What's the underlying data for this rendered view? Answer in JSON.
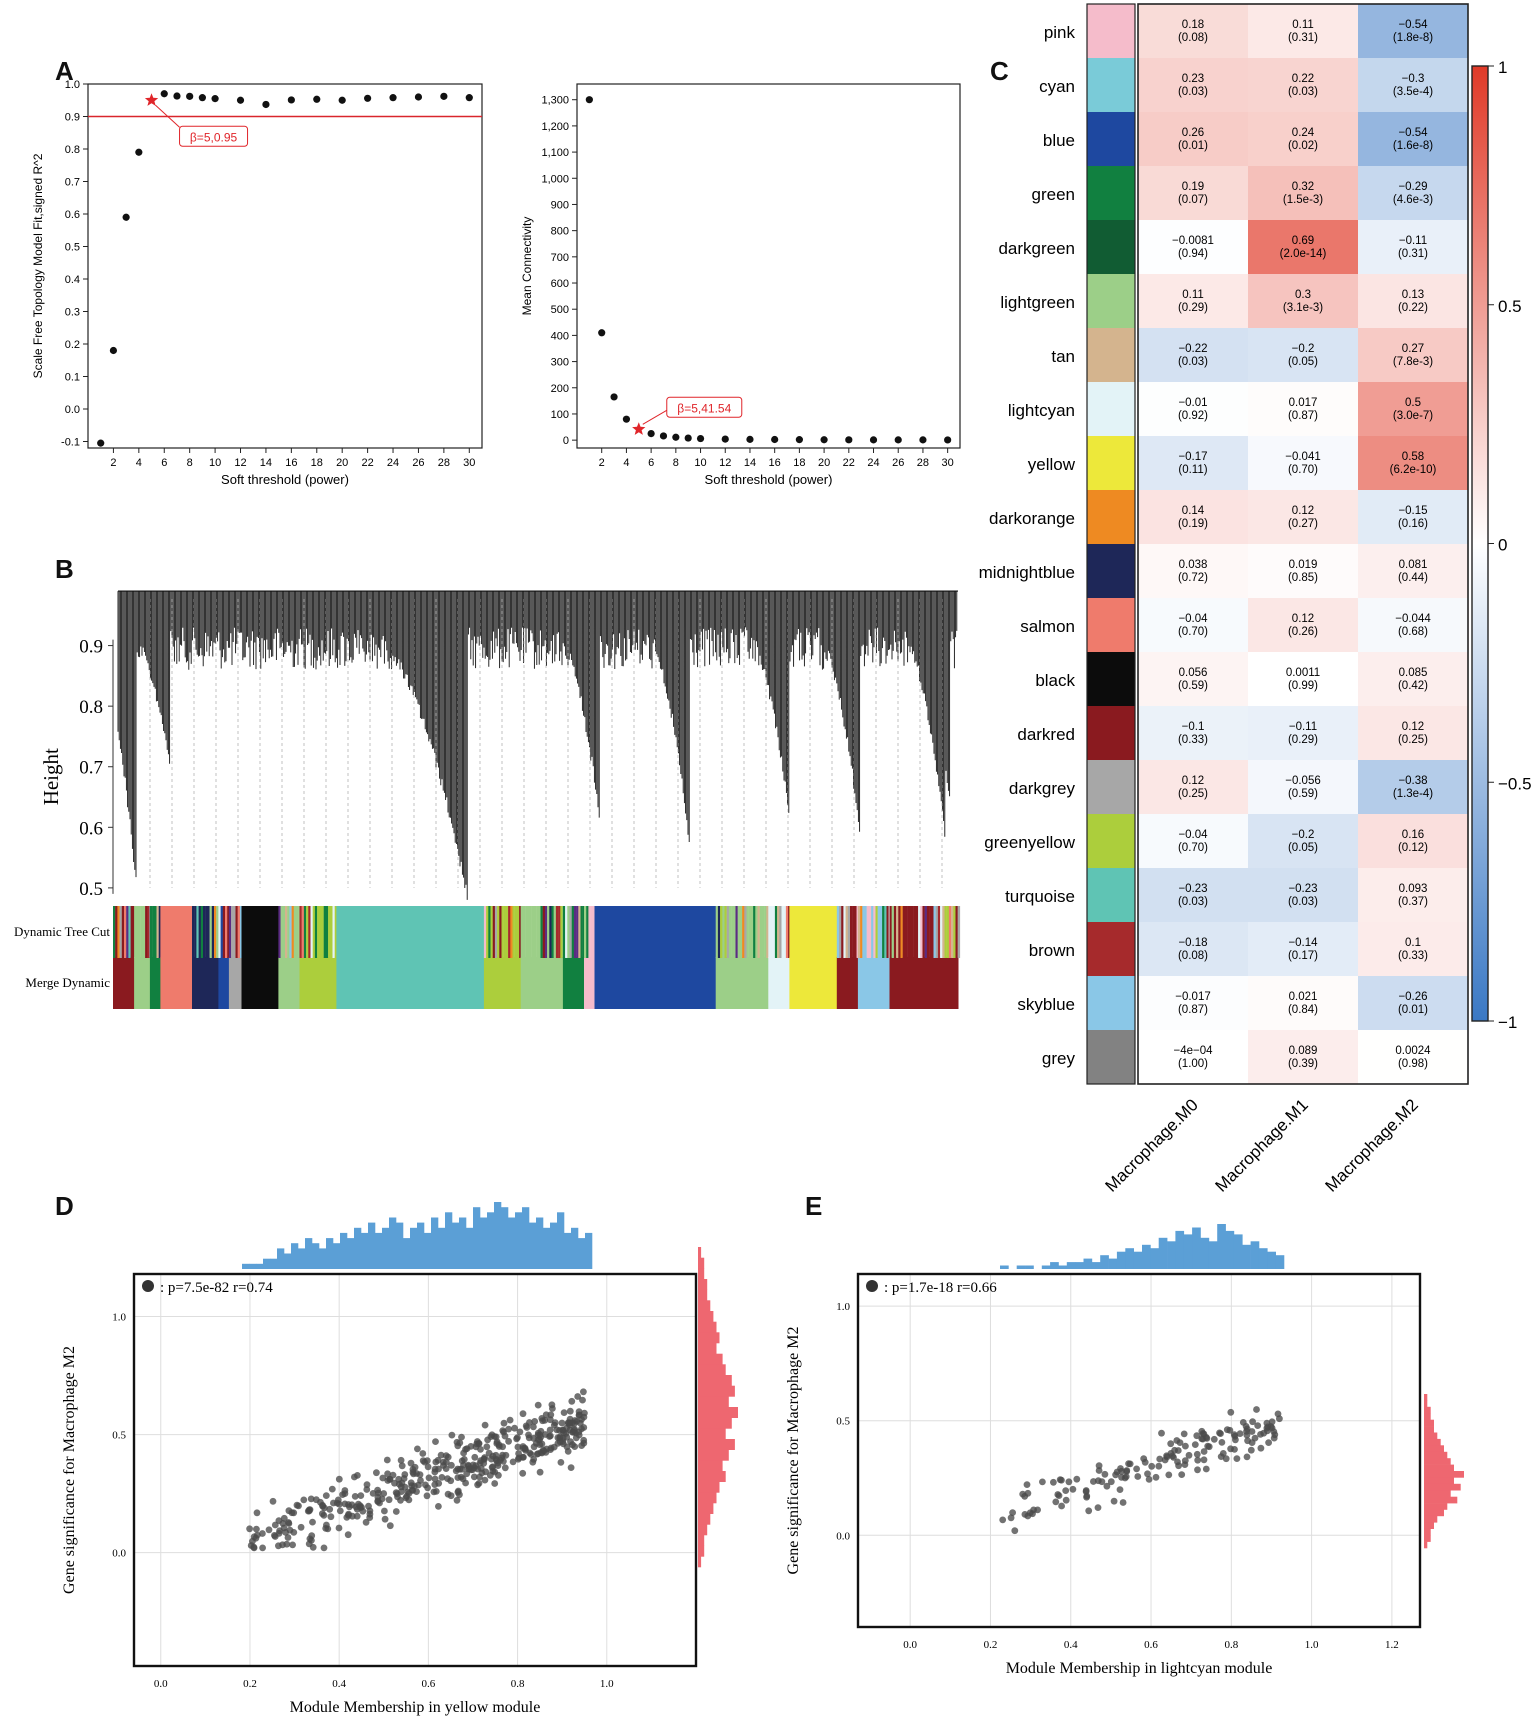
{
  "panel_labels": {
    "a": "A",
    "b": "B",
    "c": "C",
    "d": "D",
    "e": "E"
  },
  "chart_data": [
    {
      "id": "A1",
      "type": "scatter",
      "title": "",
      "xlabel": "Soft threshold (power)",
      "ylabel": "Scale Free Topology Model Fit,signed R^2",
      "xlim": [
        0,
        31
      ],
      "ylim": [
        -0.12,
        1.0
      ],
      "xticks": [
        2,
        4,
        6,
        8,
        10,
        12,
        14,
        16,
        18,
        20,
        22,
        24,
        26,
        28,
        30
      ],
      "yticks": [
        -0.1,
        0.0,
        0.1,
        0.2,
        0.3,
        0.4,
        0.5,
        0.6,
        0.7,
        0.8,
        0.9,
        1.0
      ],
      "x": [
        1,
        2,
        3,
        4,
        5,
        6,
        7,
        8,
        9,
        10,
        12,
        14,
        16,
        18,
        20,
        22,
        24,
        26,
        28,
        30
      ],
      "y": [
        -0.105,
        0.18,
        0.59,
        0.79,
        0.95,
        0.97,
        0.963,
        0.962,
        0.958,
        0.955,
        0.95,
        0.937,
        0.951,
        0.953,
        0.95,
        0.956,
        0.958,
        0.96,
        0.962,
        0.958
      ],
      "threshold_line": 0.9,
      "highlight": {
        "x": 5,
        "y": 0.95,
        "label": "β=5,0.95"
      }
    },
    {
      "id": "A2",
      "type": "scatter",
      "title": "",
      "xlabel": "Soft threshold (power)",
      "ylabel": "Mean Connectivity",
      "xlim": [
        0,
        31
      ],
      "ylim": [
        -30,
        1360
      ],
      "xticks": [
        2,
        4,
        6,
        8,
        10,
        12,
        14,
        16,
        18,
        20,
        22,
        24,
        26,
        28,
        30
      ],
      "yticks": [
        0,
        100,
        200,
        300,
        400,
        500,
        600,
        700,
        800,
        900,
        1000,
        1100,
        1200,
        1300
      ],
      "ytick_labels": [
        "0",
        "100",
        "200",
        "300",
        "400",
        "500",
        "600",
        "700",
        "800",
        "900",
        "1,000",
        "1,100",
        "1,200",
        "1,300"
      ],
      "x": [
        1,
        2,
        3,
        4,
        5,
        6,
        7,
        8,
        9,
        10,
        12,
        14,
        16,
        18,
        20,
        22,
        24,
        26,
        28,
        30
      ],
      "y": [
        1300,
        410,
        165,
        80,
        41.54,
        25,
        16,
        11,
        8,
        6,
        4,
        3,
        2.5,
        2,
        1.5,
        1.2,
        1,
        1,
        1,
        0.8
      ],
      "highlight": {
        "x": 5,
        "y": 41.54,
        "label": "β=5,41.54"
      }
    },
    {
      "id": "B",
      "type": "dendrogram",
      "ylabel": "Height",
      "ylim": [
        0.48,
        1.0
      ],
      "yticks": [
        0.5,
        0.6,
        0.7,
        0.8,
        0.9
      ],
      "color_rows": [
        "Dynamic Tree Cut",
        "Merge Dynamic"
      ],
      "merge_blocks": [
        {
          "module": "darkred",
          "w": 2
        },
        {
          "module": "lightgreen",
          "w": 1.5
        },
        {
          "module": "green",
          "w": 1
        },
        {
          "module": "salmon",
          "w": 3
        },
        {
          "module": "midnightblue",
          "w": 2.5
        },
        {
          "module": "blue",
          "w": 1
        },
        {
          "module": "darkgrey",
          "w": 1.2
        },
        {
          "module": "black",
          "w": 3.5
        },
        {
          "module": "lightgreen",
          "w": 2
        },
        {
          "module": "greenyellow",
          "w": 3.5
        },
        {
          "module": "turquoise",
          "w": 14
        },
        {
          "module": "greenyellow",
          "w": 3.5
        },
        {
          "module": "lightgreen",
          "w": 4
        },
        {
          "module": "green",
          "w": 2
        },
        {
          "module": "pink",
          "w": 1
        },
        {
          "module": "blue",
          "w": 11.5
        },
        {
          "module": "lightgreen",
          "w": 5
        },
        {
          "module": "lightcyan",
          "w": 2
        },
        {
          "module": "yellow",
          "w": 4.5
        },
        {
          "module": "darkred",
          "w": 2
        },
        {
          "module": "skyblue",
          "w": 3
        },
        {
          "module": "darkred",
          "w": 6.5
        }
      ]
    },
    {
      "id": "C",
      "type": "heatmap",
      "rows": [
        "pink",
        "cyan",
        "blue",
        "green",
        "darkgreen",
        "lightgreen",
        "tan",
        "lightcyan",
        "yellow",
        "darkorange",
        "midnightblue",
        "salmon",
        "black",
        "darkred",
        "darkgrey",
        "greenyellow",
        "turquoise",
        "brown",
        "skyblue",
        "grey"
      ],
      "columns": [
        "Macrophage.M0",
        "Macrophage.M1",
        "Macrophage.M2"
      ],
      "values": [
        [
          0.18,
          0.11,
          -0.54
        ],
        [
          0.23,
          0.22,
          -0.3
        ],
        [
          0.26,
          0.24,
          -0.54
        ],
        [
          0.19,
          0.32,
          -0.29
        ],
        [
          -0.0081,
          0.69,
          -0.11
        ],
        [
          0.11,
          0.3,
          0.13
        ],
        [
          -0.22,
          -0.2,
          0.27
        ],
        [
          -0.01,
          0.017,
          0.5
        ],
        [
          -0.17,
          -0.041,
          0.58
        ],
        [
          0.14,
          0.12,
          -0.15
        ],
        [
          0.038,
          0.019,
          0.081
        ],
        [
          -0.04,
          0.12,
          -0.044
        ],
        [
          0.056,
          0.0011,
          0.085
        ],
        [
          -0.1,
          -0.11,
          0.12
        ],
        [
          0.12,
          -0.056,
          -0.38
        ],
        [
          -0.04,
          -0.2,
          0.16
        ],
        [
          -0.23,
          -0.23,
          0.093
        ],
        [
          -0.18,
          -0.14,
          0.1
        ],
        [
          -0.017,
          0.021,
          -0.26
        ],
        [
          -0.0004,
          0.089,
          0.0024
        ]
      ],
      "labels": [
        [
          "0.18",
          "0.11",
          "−0.54"
        ],
        [
          "0.23",
          "0.22",
          "−0.3"
        ],
        [
          "0.26",
          "0.24",
          "−0.54"
        ],
        [
          "0.19",
          "0.32",
          "−0.29"
        ],
        [
          "−0.0081",
          "0.69",
          "−0.11"
        ],
        [
          "0.11",
          "0.3",
          "0.13"
        ],
        [
          "−0.22",
          "−0.2",
          "0.27"
        ],
        [
          "−0.01",
          "0.017",
          "0.5"
        ],
        [
          "−0.17",
          "−0.041",
          "0.58"
        ],
        [
          "0.14",
          "0.12",
          "−0.15"
        ],
        [
          "0.038",
          "0.019",
          "0.081"
        ],
        [
          "−0.04",
          "0.12",
          "−0.044"
        ],
        [
          "0.056",
          "0.0011",
          "0.085"
        ],
        [
          "−0.1",
          "−0.11",
          "0.12"
        ],
        [
          "0.12",
          "−0.056",
          "−0.38"
        ],
        [
          "−0.04",
          "−0.2",
          "0.16"
        ],
        [
          "−0.23",
          "−0.23",
          "0.093"
        ],
        [
          "−0.18",
          "−0.14",
          "0.1"
        ],
        [
          "−0.017",
          "0.021",
          "−0.26"
        ],
        [
          "−4e−04",
          "0.089",
          "0.0024"
        ]
      ],
      "pvalues": [
        [
          "(0.08)",
          "(0.31)",
          "(1.8e-8)"
        ],
        [
          "(0.03)",
          "(0.03)",
          "(3.5e-4)"
        ],
        [
          "(0.01)",
          "(0.02)",
          "(1.6e-8)"
        ],
        [
          "(0.07)",
          "(1.5e-3)",
          "(4.6e-3)"
        ],
        [
          "(0.94)",
          "(2.0e-14)",
          "(0.31)"
        ],
        [
          "(0.29)",
          "(3.1e-3)",
          "(0.22)"
        ],
        [
          "(0.03)",
          "(0.05)",
          "(7.8e-3)"
        ],
        [
          "(0.92)",
          "(0.87)",
          "(3.0e-7)"
        ],
        [
          "(0.11)",
          "(0.70)",
          "(6.2e-10)"
        ],
        [
          "(0.19)",
          "(0.27)",
          "(0.16)"
        ],
        [
          "(0.72)",
          "(0.85)",
          "(0.44)"
        ],
        [
          "(0.70)",
          "(0.26)",
          "(0.68)"
        ],
        [
          "(0.59)",
          "(0.99)",
          "(0.42)"
        ],
        [
          "(0.33)",
          "(0.29)",
          "(0.25)"
        ],
        [
          "(0.25)",
          "(0.59)",
          "(1.3e-4)"
        ],
        [
          "(0.70)",
          "(0.05)",
          "(0.12)"
        ],
        [
          "(0.03)",
          "(0.03)",
          "(0.37)"
        ],
        [
          "(0.08)",
          "(0.17)",
          "(0.33)"
        ],
        [
          "(0.87)",
          "(0.84)",
          "(0.01)"
        ],
        [
          "(1.00)",
          "(0.39)",
          "(0.98)"
        ]
      ],
      "colorbar": {
        "ticks": [
          1,
          0.5,
          0,
          -0.5,
          -1
        ],
        "tick_labels": [
          "1",
          "0.5",
          "0",
          "−0.5",
          "−1"
        ],
        "low": "#3a78c4",
        "mid": "#ffffff",
        "high": "#e03a28"
      }
    },
    {
      "id": "D",
      "type": "scatter",
      "xlabel": "Module Membership in yellow module",
      "ylabel": "Gene significance for Macrophage M2",
      "legend": ": p=7.5e-82 r=0.74",
      "xlim": [
        -0.06,
        1.2
      ],
      "ylim": [
        -0.48,
        1.18
      ],
      "xticks": [
        0.0,
        0.2,
        0.4,
        0.6,
        0.8,
        1.0
      ],
      "yticks": [
        0.0,
        0.5,
        1.0
      ],
      "n_points": 420,
      "x_range": [
        0.19,
        0.95
      ],
      "fit": {
        "slope": 0.68,
        "intercept": -0.09,
        "spread": 0.085
      },
      "top_hist": [
        1,
        1,
        1,
        2,
        2,
        4,
        3,
        5,
        4,
        6,
        5,
        4,
        6,
        5,
        7,
        6,
        8,
        7,
        9,
        7,
        8,
        10,
        9,
        6,
        8,
        9,
        7,
        10,
        8,
        11,
        9,
        10,
        8,
        12,
        10,
        11,
        13,
        12,
        10,
        11,
        12,
        9,
        10,
        8,
        9,
        11,
        7,
        8,
        6,
        7
      ],
      "right_hist": [
        1,
        2,
        2,
        3,
        3,
        4,
        5,
        6,
        7,
        6,
        8,
        9,
        11,
        12,
        10,
        13,
        11,
        9,
        12,
        10,
        8,
        9,
        7,
        6,
        5,
        4,
        3,
        2,
        2,
        1
      ]
    },
    {
      "id": "E",
      "type": "scatter",
      "xlabel": "Module Membership in lightcyan module",
      "ylabel": "Gene significance for Macrophage M2",
      "legend": ": p=1.7e-18 r=0.66",
      "xlim": [
        -0.13,
        1.27
      ],
      "ylim": [
        -0.4,
        1.14
      ],
      "xticks": [
        0.0,
        0.2,
        0.4,
        0.6,
        0.8,
        1.0,
        1.2
      ],
      "yticks": [
        0.0,
        0.5,
        1.0
      ],
      "n_points": 150,
      "x_range": [
        0.2,
        0.92
      ],
      "fit": {
        "slope": 0.62,
        "intercept": -0.07,
        "spread": 0.07
      },
      "top_hist": [
        1,
        0,
        1,
        1,
        0,
        1,
        2,
        1,
        2,
        2,
        3,
        2,
        4,
        3,
        5,
        6,
        5,
        7,
        6,
        9,
        8,
        11,
        10,
        12,
        9,
        8,
        13,
        11,
        10,
        7,
        8,
        6,
        5,
        4
      ],
      "right_hist": [
        1,
        1,
        2,
        2,
        3,
        3,
        4,
        5,
        6,
        7,
        8,
        9,
        12,
        9,
        11,
        8,
        10,
        7,
        6,
        4,
        3,
        2,
        2,
        1
      ]
    }
  ]
}
